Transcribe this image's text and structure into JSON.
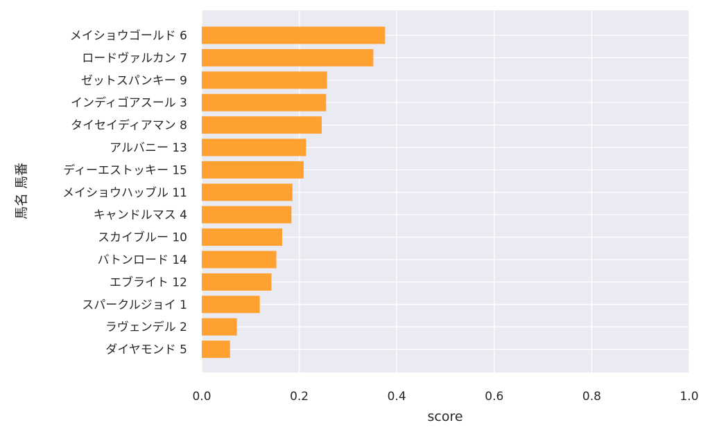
{
  "chart_data": {
    "type": "bar",
    "orientation": "horizontal",
    "xlabel": "score",
    "ylabel": "馬名 馬番",
    "xlim": [
      0,
      1
    ],
    "x_ticks": [
      "0.0",
      "0.2",
      "0.4",
      "0.6",
      "0.8",
      "1.0"
    ],
    "grid": true,
    "categories": [
      "メイショウゴールド 6",
      "ロードヴァルカン 7",
      "ゼットスパンキー 9",
      "インディゴアスール 3",
      "タイセイディアマン 8",
      "アルバニー 13",
      "ディーエストッキー 15",
      "メイショウハッブル 11",
      "キャンドルマス 4",
      "スカイブルー 10",
      "バトンロード 14",
      "エブライト 12",
      "スパークルジョイ 1",
      "ラヴェンデル 2",
      "ダイヤモンド 5"
    ],
    "values": [
      0.376,
      0.352,
      0.257,
      0.255,
      0.246,
      0.214,
      0.209,
      0.186,
      0.184,
      0.165,
      0.153,
      0.143,
      0.119,
      0.072,
      0.058
    ],
    "colors": {
      "bar": "#ff9a1f",
      "background": "#eaeaf2",
      "grid": "#ffffff",
      "text": "#262626"
    }
  }
}
